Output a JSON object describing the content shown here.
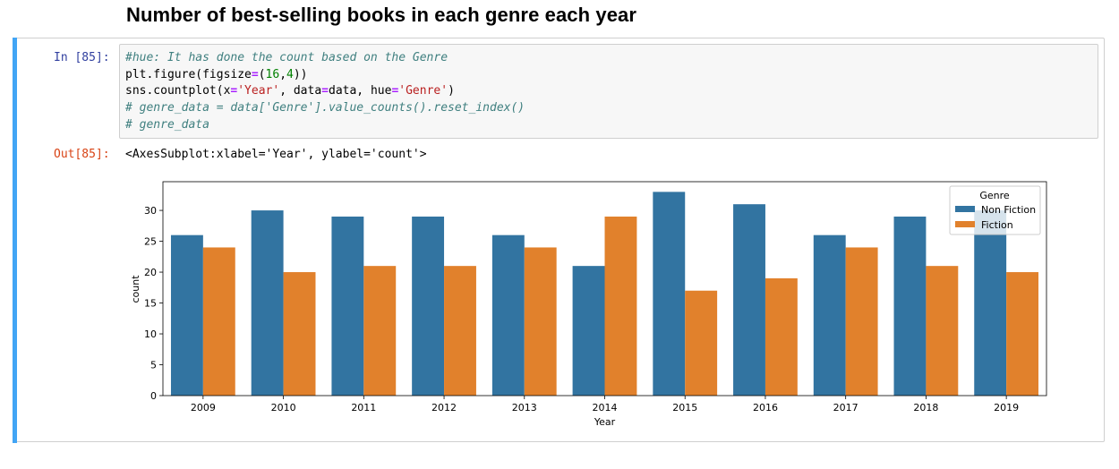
{
  "heading": "Number of best-selling books in each genre each year",
  "cell": {
    "in_prompt": "In [85]:",
    "out_prompt": "Out[85]:",
    "code_lines": [
      [
        {
          "t": "#hue: It has done the count based on the Genre",
          "c": "cm"
        }
      ],
      [
        {
          "t": "plt.figure(figsize",
          "c": ""
        },
        {
          "t": "=",
          "c": "op"
        },
        {
          "t": "(",
          "c": ""
        },
        {
          "t": "16",
          "c": "num"
        },
        {
          "t": ",",
          "c": ""
        },
        {
          "t": "4",
          "c": "num"
        },
        {
          "t": "))",
          "c": ""
        }
      ],
      [
        {
          "t": "sns.countplot(x",
          "c": ""
        },
        {
          "t": "=",
          "c": "op"
        },
        {
          "t": "'Year'",
          "c": "str"
        },
        {
          "t": ", data",
          "c": ""
        },
        {
          "t": "=",
          "c": "op"
        },
        {
          "t": "data, hue",
          "c": ""
        },
        {
          "t": "=",
          "c": "op"
        },
        {
          "t": "'Genre'",
          "c": "str"
        },
        {
          "t": ")",
          "c": ""
        }
      ],
      [
        {
          "t": "# genre_data = data['Genre'].value_counts().reset_index()",
          "c": "cm"
        }
      ],
      [
        {
          "t": "# genre_data",
          "c": "cm"
        }
      ]
    ],
    "output_text": "<AxesSubplot:xlabel='Year', ylabel='count'>"
  },
  "colors": {
    "non_fiction": "#3274a1",
    "fiction": "#e1812c"
  },
  "chart_data": {
    "type": "bar",
    "categories": [
      "2009",
      "2010",
      "2011",
      "2012",
      "2013",
      "2014",
      "2015",
      "2016",
      "2017",
      "2018",
      "2019"
    ],
    "series": [
      {
        "name": "Non Fiction",
        "values": [
          26,
          30,
          29,
          29,
          26,
          21,
          33,
          31,
          26,
          29,
          30
        ]
      },
      {
        "name": "Fiction",
        "values": [
          24,
          20,
          21,
          21,
          24,
          29,
          17,
          19,
          24,
          21,
          20
        ]
      }
    ],
    "xlabel": "Year",
    "ylabel": "count",
    "ylim": [
      0,
      34.65
    ],
    "yticks": [
      0,
      5,
      10,
      15,
      20,
      25,
      30
    ],
    "legend_title": "Genre",
    "legend_position": "top-right",
    "grid": false
  }
}
